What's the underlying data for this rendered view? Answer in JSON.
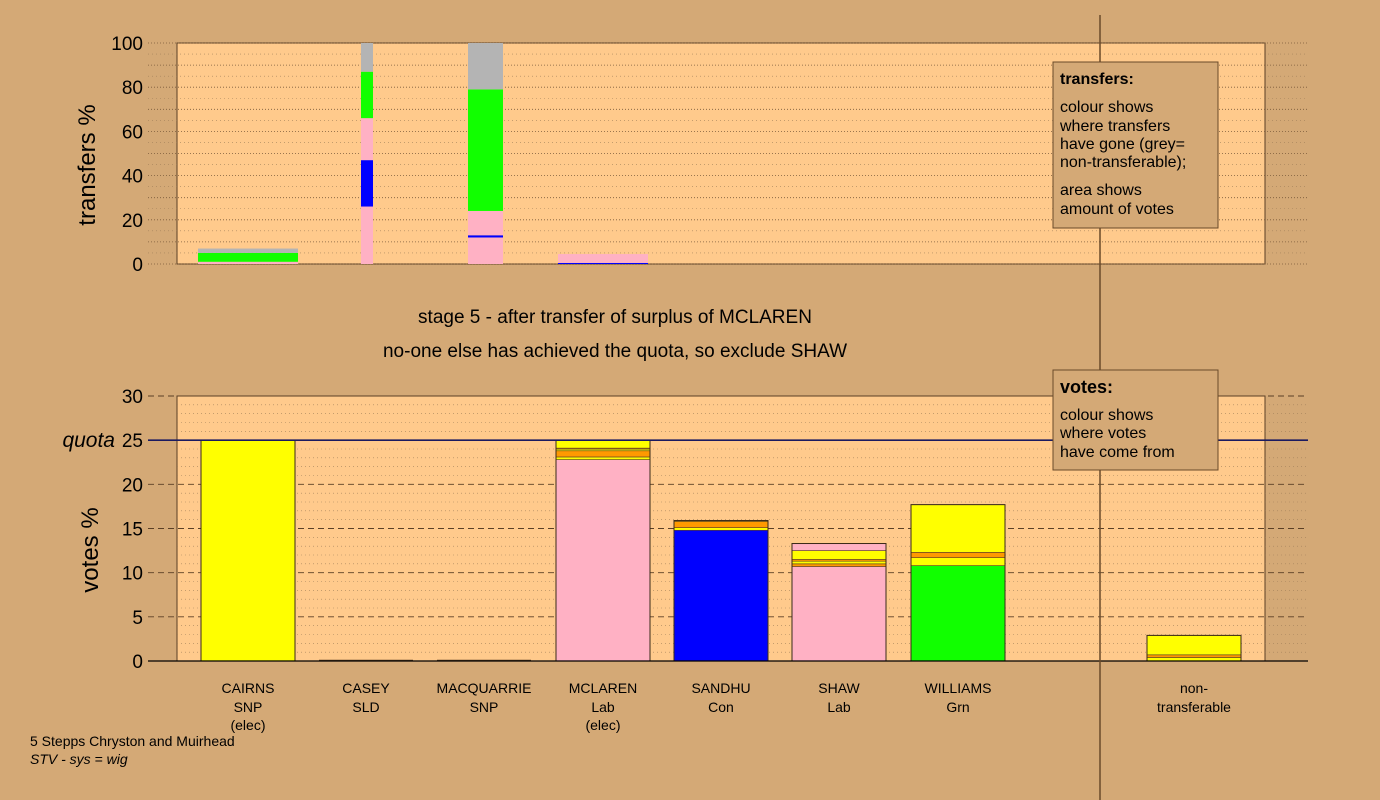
{
  "colors": {
    "background": "#d4a976",
    "plot_bg": "#ffca8c",
    "yellow": "#ffff00",
    "pink": "#ffb1c4",
    "blue": "#0000ff",
    "green": "#11ff00",
    "orange": "#ff9900",
    "grey": "#b4b4b4"
  },
  "caption": {
    "line1": "stage 5 - after transfer of surplus of MCLAREN",
    "line2": "no-one else has achieved the quota, so exclude SHAW"
  },
  "footer": {
    "line1": "5 Stepps Chryston and Muirhead",
    "line2": "STV - sys = wig"
  },
  "legend_transfers": {
    "title": "transfers:",
    "lines": [
      "colour shows",
      "where transfers",
      "have gone (grey=",
      "non-transferable);",
      "area shows",
      "amount of votes"
    ]
  },
  "legend_votes": {
    "title": "votes:",
    "lines": [
      "colour shows",
      "where votes",
      "have come from"
    ]
  },
  "chart_data": [
    {
      "type": "bar",
      "ylabel": "transfers %",
      "ylim": [
        0,
        100
      ],
      "yticks": [
        0,
        20,
        40,
        60,
        80,
        100
      ],
      "columns": [
        {
          "segments": [
            {
              "color": "pink",
              "value": 1
            },
            {
              "color": "green",
              "value": 4
            },
            {
              "color": "grey",
              "value": 2
            }
          ],
          "width": 1
        },
        {
          "segments": [
            {
              "color": "pink",
              "value": 26
            },
            {
              "color": "blue",
              "value": 21
            },
            {
              "color": "pink",
              "value": 19
            },
            {
              "color": "green",
              "value": 21
            },
            {
              "color": "grey",
              "value": 13
            }
          ],
          "width": 0.12
        },
        {
          "segments": [
            {
              "color": "pink",
              "value": 12
            },
            {
              "color": "blue",
              "value": 1
            },
            {
              "color": "pink",
              "value": 11
            },
            {
              "color": "green",
              "value": 55
            },
            {
              "color": "grey",
              "value": 21
            }
          ],
          "width": 0.36
        },
        {
          "segments": [
            {
              "color": "blue",
              "value": 0.5
            },
            {
              "color": "pink",
              "value": 4
            }
          ],
          "width": 0.95
        }
      ]
    },
    {
      "type": "bar",
      "ylabel": "votes %",
      "ylim": [
        0,
        30
      ],
      "yticks": [
        0,
        5,
        10,
        15,
        20,
        25,
        30
      ],
      "quota": 25,
      "quota_label": "quota",
      "candidates": [
        {
          "name": "CAIRNS",
          "party": "SNP",
          "status": "(elec)",
          "segments": [
            {
              "color": "yellow",
              "value": 25
            }
          ]
        },
        {
          "name": "CASEY",
          "party": "SLD",
          "status": "",
          "segments": []
        },
        {
          "name": "MACQUARRIE",
          "party": "SNP",
          "status": "",
          "segments": []
        },
        {
          "name": "MCLAREN",
          "party": "Lab",
          "status": "(elec)",
          "segments": [
            {
              "color": "pink",
              "value": 22.8
            },
            {
              "color": "yellow",
              "value": 0.3
            },
            {
              "color": "orange",
              "value": 0.7
            },
            {
              "color": "yellow",
              "value": 0.2
            },
            {
              "color": "orange",
              "value": 0.1
            },
            {
              "color": "yellow",
              "value": 0.9
            }
          ]
        },
        {
          "name": "SANDHU",
          "party": "Con",
          "status": "",
          "segments": [
            {
              "color": "blue",
              "value": 14.8
            },
            {
              "color": "yellow",
              "value": 0.3
            },
            {
              "color": "orange",
              "value": 0.7
            },
            {
              "color": "yellow",
              "value": 0.1
            }
          ]
        },
        {
          "name": "SHAW",
          "party": "Lab",
          "status": "",
          "segments": [
            {
              "color": "pink",
              "value": 10.7
            },
            {
              "color": "orange",
              "value": 0.3
            },
            {
              "color": "yellow",
              "value": 0.3
            },
            {
              "color": "orange",
              "value": 0.2
            },
            {
              "color": "yellow",
              "value": 1.0
            },
            {
              "color": "pink",
              "value": 0.8
            }
          ]
        },
        {
          "name": "WILLIAMS",
          "party": "Grn",
          "status": "",
          "segments": [
            {
              "color": "green",
              "value": 10.8
            },
            {
              "color": "yellow",
              "value": 0.9
            },
            {
              "color": "orange",
              "value": 0.6
            },
            {
              "color": "yellow",
              "value": 5.4
            }
          ]
        }
      ],
      "nontransferable": {
        "label1": "non-",
        "label2": "transferable",
        "segments": [
          {
            "color": "yellow",
            "value": 0.4
          },
          {
            "color": "orange",
            "value": 0.3
          },
          {
            "color": "yellow",
            "value": 2.2
          }
        ]
      }
    }
  ]
}
